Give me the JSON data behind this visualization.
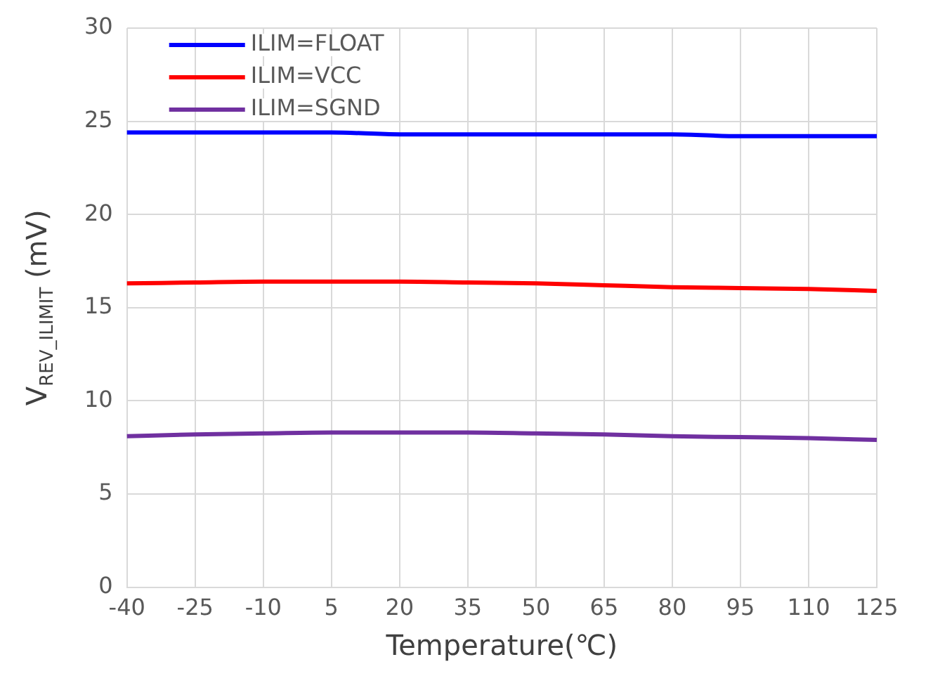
{
  "chart_data": {
    "type": "line",
    "xlabel": "Temperature(℃)",
    "ylabel": "V$_{REV_ILIMIT}$ (mV)",
    "categories": [
      "-40",
      "-25",
      "-10",
      "5",
      "20",
      "35",
      "50",
      "65",
      "80",
      "95",
      "110",
      "125"
    ],
    "series": [
      {
        "name": "ILIM=FLOAT",
        "color": "#0000ff",
        "values": [
          24.4,
          24.4,
          24.4,
          24.4,
          24.3,
          24.3,
          24.3,
          24.3,
          24.3,
          24.2,
          24.2,
          24.2
        ]
      },
      {
        "name": "ILIM=VCC",
        "color": "#ff0000",
        "values": [
          16.3,
          16.35,
          16.4,
          16.4,
          16.4,
          16.35,
          16.3,
          16.2,
          16.1,
          16.05,
          16.0,
          15.9
        ]
      },
      {
        "name": "ILIM=SGND",
        "color": "#7030a0",
        "values": [
          8.1,
          8.2,
          8.25,
          8.3,
          8.3,
          8.3,
          8.25,
          8.2,
          8.1,
          8.05,
          8.0,
          7.9
        ]
      }
    ],
    "ylim": [
      0,
      30
    ],
    "yticks": [
      0,
      5,
      10,
      15,
      20,
      25,
      30
    ],
    "grid": true,
    "legend": "top left",
    "marker": "none",
    "line_style": "solid"
  }
}
